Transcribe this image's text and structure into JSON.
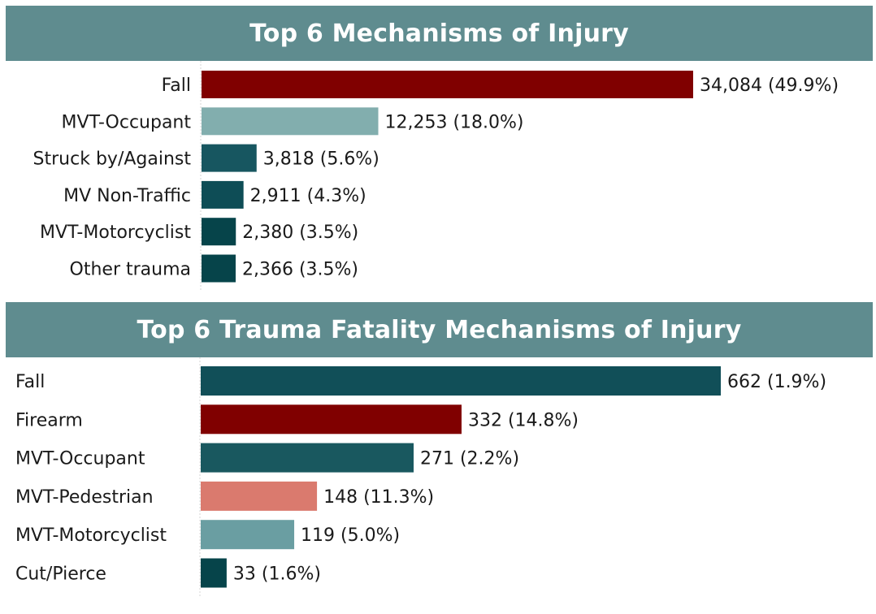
{
  "chart_data": [
    {
      "type": "bar",
      "orientation": "horizontal",
      "title": "Top 6 Mechanisms of Injury",
      "categories": [
        "Fall",
        "MVT-Occupant",
        "Struck by/Against",
        "MV Non-Traffic",
        "MVT-Motorcyclist",
        "Other trauma"
      ],
      "values": [
        34084,
        12253,
        3818,
        2911,
        2380,
        2366
      ],
      "labels": [
        "34,084 (49.9%)",
        "12,253 (18.0%)",
        "3,818 (5.6%)",
        "2,911 (4.3%)",
        "2,380 (3.5%)",
        "2,366 (3.5%)"
      ],
      "colors": [
        "#800000",
        "#82aeae",
        "#175660",
        "#0e4d56",
        "#06444a",
        "#06444a"
      ],
      "xlim": [
        0,
        34084
      ],
      "label_align": "right"
    },
    {
      "type": "bar",
      "orientation": "horizontal",
      "title": "Top 6 Trauma Fatality Mechanisms of Injury",
      "categories": [
        "Fall",
        "Firearm",
        "MVT-Occupant",
        "MVT-Pedestrian",
        "MVT-Motorcyclist",
        "Cut/Pierce"
      ],
      "values": [
        662,
        332,
        271,
        148,
        119,
        33
      ],
      "labels": [
        "662 (1.9%)",
        "332 (14.8%)",
        "271 (2.2%)",
        "148 (11.3%)",
        "119 (5.0%)",
        "33 (1.6%)"
      ],
      "colors": [
        "#114f58",
        "#800000",
        "#19585f",
        "#da7a6e",
        "#6a9ea2",
        "#06444a"
      ],
      "xlim": [
        0,
        662
      ],
      "label_align": "left"
    }
  ]
}
